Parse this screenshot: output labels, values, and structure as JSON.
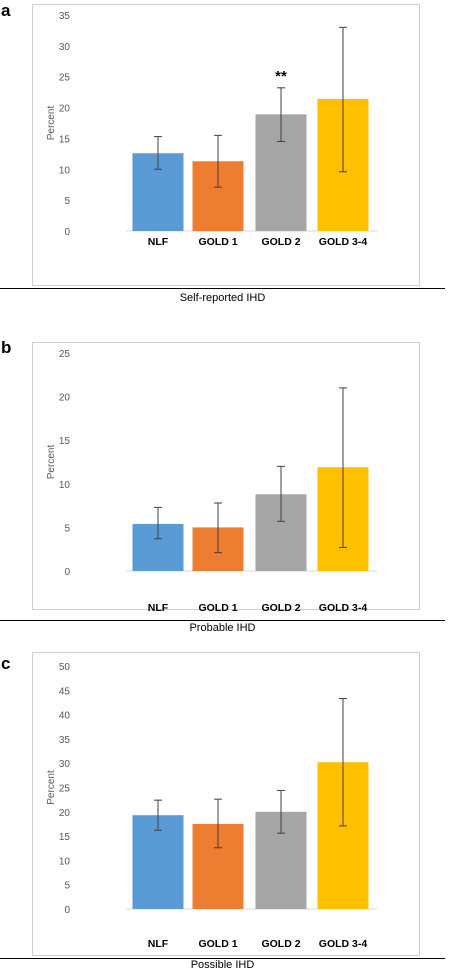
{
  "chart_data": [
    {
      "id": "a",
      "panel_label": "a",
      "type": "bar",
      "categories": [
        "NLF",
        "GOLD 1",
        "GOLD 2",
        "GOLD 3-4"
      ],
      "values": [
        12.6,
        11.3,
        18.9,
        21.4
      ],
      "error_low": [
        10.0,
        7.1,
        14.5,
        9.6
      ],
      "error_high": [
        15.3,
        15.5,
        23.2,
        33.0
      ],
      "colors": [
        "#5B9BD5",
        "#ED7D31",
        "#A5A5A5",
        "#FFC000"
      ],
      "ylabel": "Percent",
      "ylim": [
        0,
        35
      ],
      "yticks": [
        0,
        5,
        10,
        15,
        20,
        25,
        30,
        35
      ],
      "grid": false,
      "section_label": "Self-reported IHD",
      "annotations": [
        {
          "category": "GOLD 2",
          "text": "**"
        }
      ]
    },
    {
      "id": "b",
      "panel_label": "b",
      "type": "bar",
      "categories": [
        "NLF",
        "GOLD 1",
        "GOLD 2",
        "GOLD 3-4"
      ],
      "values": [
        5.4,
        5.0,
        8.8,
        11.9
      ],
      "error_low": [
        3.7,
        2.1,
        5.7,
        2.7
      ],
      "error_high": [
        7.3,
        7.8,
        12.0,
        21.0
      ],
      "colors": [
        "#5B9BD5",
        "#ED7D31",
        "#A5A5A5",
        "#FFC000"
      ],
      "ylabel": "Percent",
      "ylim": [
        0,
        25
      ],
      "yticks": [
        0,
        5,
        10,
        15,
        20,
        25
      ],
      "grid": false,
      "section_label": "Probable IHD",
      "annotations": []
    },
    {
      "id": "c",
      "panel_label": "c",
      "type": "bar",
      "categories": [
        "NLF",
        "GOLD 1",
        "GOLD 2",
        "GOLD 3-4"
      ],
      "values": [
        19.3,
        17.5,
        20.0,
        30.2
      ],
      "error_low": [
        16.2,
        12.6,
        15.6,
        17.1
      ],
      "error_high": [
        22.4,
        22.6,
        24.4,
        43.3
      ],
      "colors": [
        "#5B9BD5",
        "#ED7D31",
        "#A5A5A5",
        "#FFC000"
      ],
      "ylabel": "Percent",
      "ylim": [
        0,
        50
      ],
      "yticks": [
        0,
        5,
        10,
        15,
        20,
        25,
        30,
        35,
        40,
        45,
        50
      ],
      "grid": false,
      "section_label": "Possible IHD",
      "annotations": []
    }
  ]
}
